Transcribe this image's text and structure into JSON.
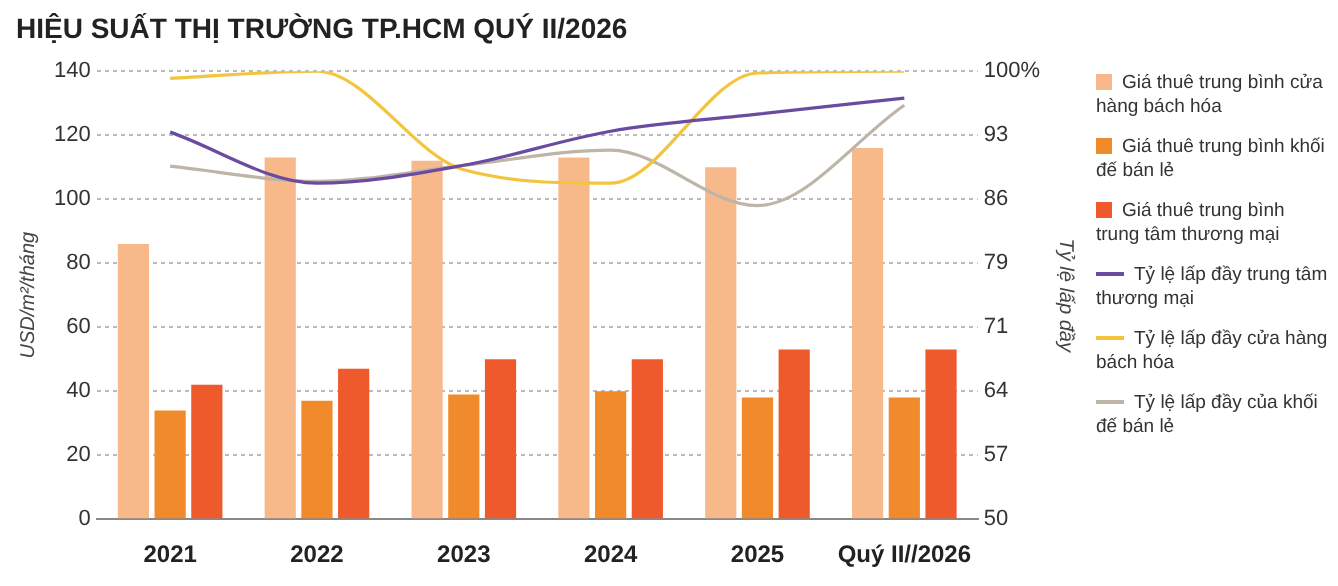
{
  "chart_data": {
    "type": "bar",
    "title": "HIỆU SUẤT THỊ TRƯỜNG TP.HCM QUÝ II/2026",
    "ylabel": "USD/m²/tháng",
    "y2label": "Tỷ lệ lấp đầy",
    "categories": [
      "2021",
      "2022",
      "2023",
      "2024",
      "2025",
      "Quý II//2026"
    ],
    "series": [
      {
        "name": "Giá thuê trung bình cửa hàng bách hóa",
        "color": "#f8b98a",
        "values": [
          86,
          113,
          112,
          113,
          110,
          116
        ]
      },
      {
        "name": "Giá thuê trung bình khối đế bán lẻ",
        "color": "#f08a2a",
        "values": [
          34,
          37,
          39,
          40,
          38,
          38
        ]
      },
      {
        "name": "Giá thuê trung bình trung tâm thương mại",
        "color": "#ee5a2b",
        "values": [
          42,
          47,
          50,
          50,
          53,
          53
        ]
      },
      {
        "name": "Tỷ lệ lấp đầy trung tâm thương mại",
        "type": "line",
        "axis": "y2",
        "color": "#6a4ba0",
        "values": [
          93.2,
          87.5,
          89.5,
          93.3,
          95.2,
          97
        ]
      },
      {
        "name": "Tỷ lệ lấp đầy cửa hàng bách hóa",
        "type": "line",
        "axis": "y2",
        "color": "#f2c53d",
        "values": [
          99.2,
          100,
          89,
          87.5,
          99.8,
          100
        ]
      },
      {
        "name": "Tỷ lệ lấp đầy của khối đế bán lẻ",
        "type": "line",
        "axis": "y2",
        "color": "#bdb5a8",
        "values": [
          89.4,
          87.7,
          89.5,
          91.2,
          85,
          96.2
        ]
      }
    ],
    "ylim": [
      0,
      140
    ],
    "yticks": [
      0,
      20,
      40,
      60,
      80,
      100,
      120,
      140
    ],
    "y2lim": [
      50,
      100
    ],
    "y2ticks": [
      50,
      {
        "value": 57.142857,
        "label": "57"
      },
      {
        "value": 64.285714,
        "label": "64"
      },
      {
        "value": 71.428571,
        "label": "71"
      },
      {
        "value": 78.571429,
        "label": "79"
      },
      {
        "value": 85.714286,
        "label": "86"
      },
      {
        "value": 92.857143,
        "label": "93"
      },
      {
        "value": 100,
        "label": "100%"
      }
    ],
    "grid": "y",
    "legend": "right",
    "marker": "none"
  }
}
